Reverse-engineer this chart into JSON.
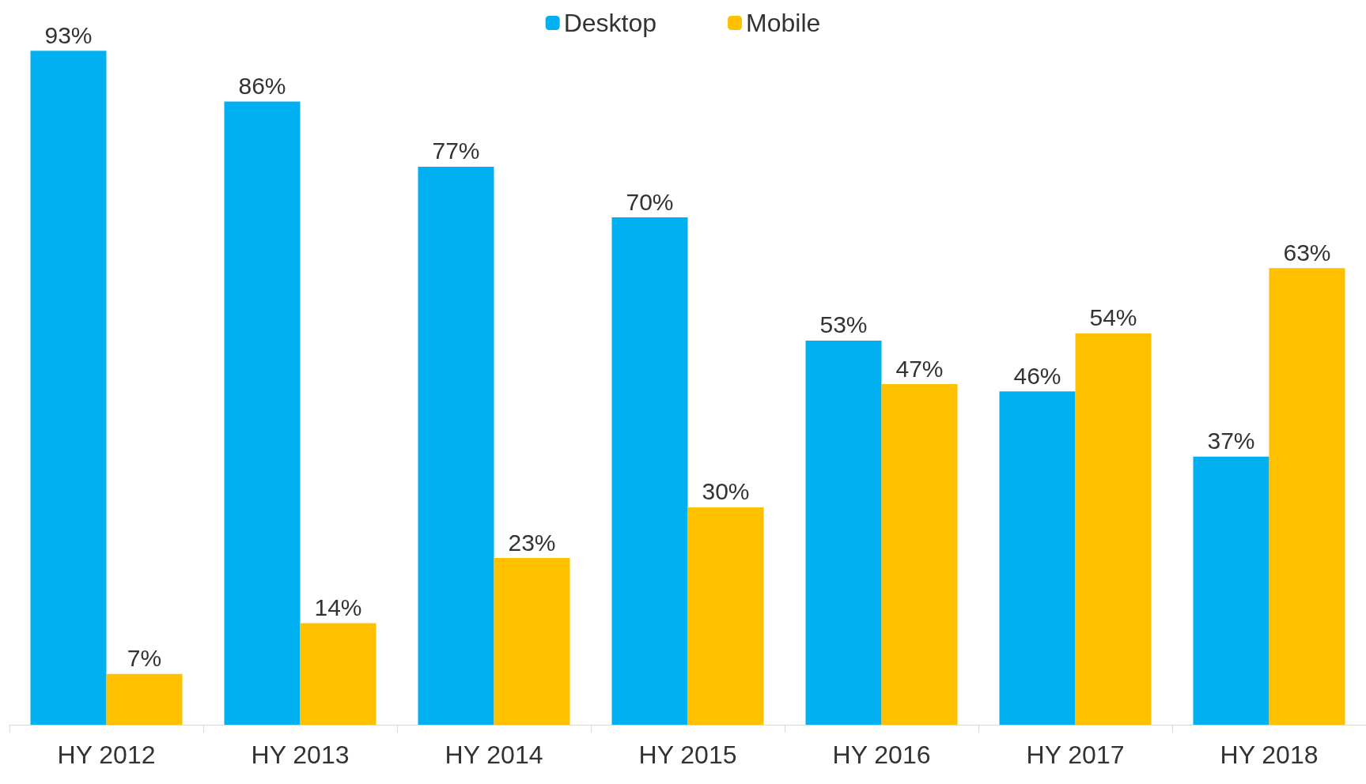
{
  "chart_data": {
    "type": "bar",
    "categories": [
      "HY 2012",
      "HY 2013",
      "HY 2014",
      "HY 2015",
      "HY 2016",
      "HY 2017",
      "HY 2018"
    ],
    "series": [
      {
        "name": "Desktop",
        "color": "#00b0f0",
        "values": [
          93,
          86,
          77,
          70,
          53,
          46,
          37
        ],
        "value_labels": [
          "93%",
          "86%",
          "77%",
          "70%",
          "53%",
          "46%",
          "37%"
        ]
      },
      {
        "name": "Mobile",
        "color": "#ffc000",
        "values": [
          7,
          14,
          23,
          30,
          47,
          54,
          63
        ],
        "value_labels": [
          "7%",
          "14%",
          "23%",
          "30%",
          "47%",
          "54%",
          "63%"
        ]
      }
    ],
    "legend": "top"
  }
}
